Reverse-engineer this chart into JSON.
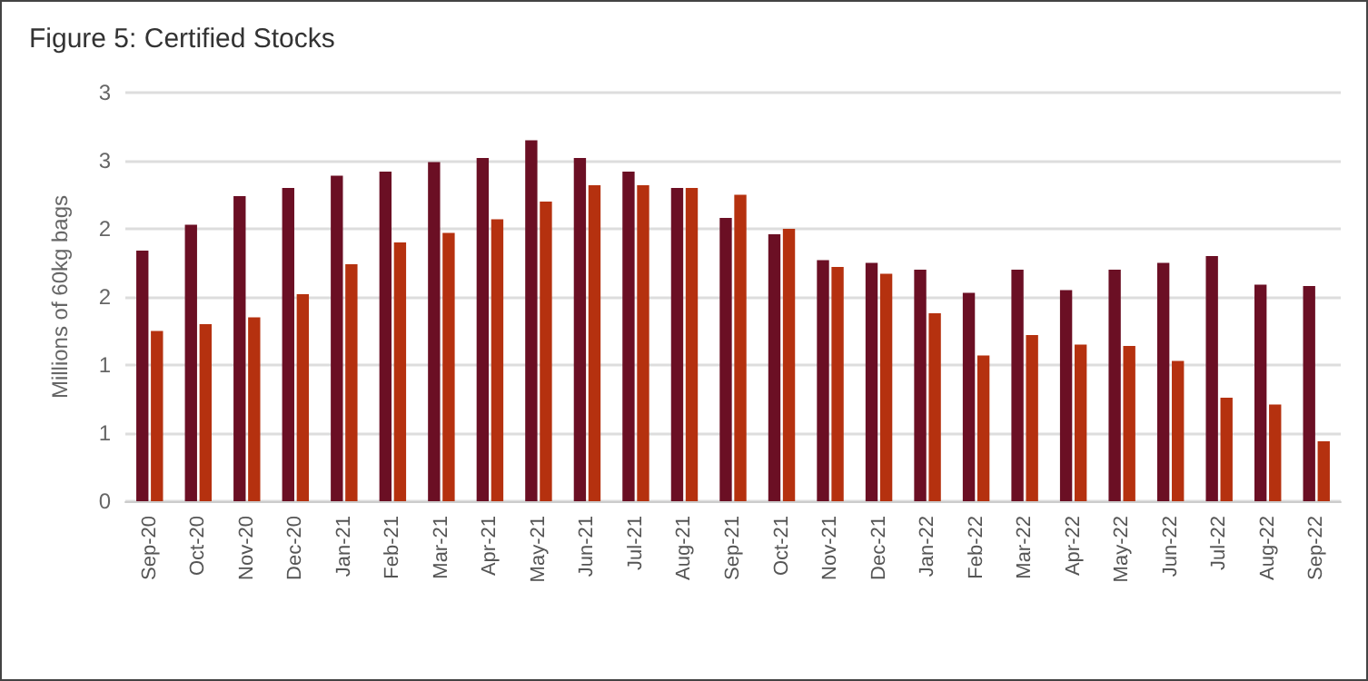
{
  "chart_data": {
    "type": "bar",
    "title": "Figure 5: Certified Stocks",
    "ylabel": "Millions of 60kg bags",
    "categories": [
      "Sep-20",
      "Oct-20",
      "Nov-20",
      "Dec-20",
      "Jan-21",
      "Feb-21",
      "Mar-21",
      "Apr-21",
      "May-21",
      "Jun-21",
      "Jul-21",
      "Aug-21",
      "Sep-21",
      "Oct-21",
      "Nov-21",
      "Dec-21",
      "Jan-22",
      "Feb-22",
      "Mar-22",
      "Apr-22",
      "May-22",
      "Jun-22",
      "Jul-22",
      "Aug-22",
      "Sep-22"
    ],
    "series": [
      {
        "color": "#6b0f24",
        "values": [
          1.84,
          2.03,
          2.24,
          2.3,
          2.39,
          2.42,
          2.49,
          2.52,
          2.65,
          2.52,
          2.42,
          2.3,
          2.08,
          1.96,
          1.77,
          1.75,
          1.7,
          1.53,
          1.7,
          1.55,
          1.7,
          1.75,
          1.8,
          1.59,
          1.58
        ]
      },
      {
        "color": "#b5310f",
        "values": [
          1.25,
          1.3,
          1.35,
          1.52,
          1.74,
          1.9,
          1.97,
          2.07,
          2.2,
          2.32,
          2.32,
          2.3,
          2.25,
          2.0,
          1.72,
          1.67,
          1.38,
          1.07,
          1.22,
          1.15,
          1.14,
          1.03,
          0.76,
          0.71,
          0.44
        ]
      }
    ],
    "ylim": [
      0,
      3
    ],
    "yticks": [
      {
        "value": 0,
        "label": "0"
      },
      {
        "value": 0.5,
        "label": "1"
      },
      {
        "value": 1,
        "label": "1"
      },
      {
        "value": 1.5,
        "label": "2"
      },
      {
        "value": 2,
        "label": "2"
      },
      {
        "value": 2.5,
        "label": "3"
      },
      {
        "value": 3,
        "label": "3"
      }
    ],
    "grid": "y"
  }
}
